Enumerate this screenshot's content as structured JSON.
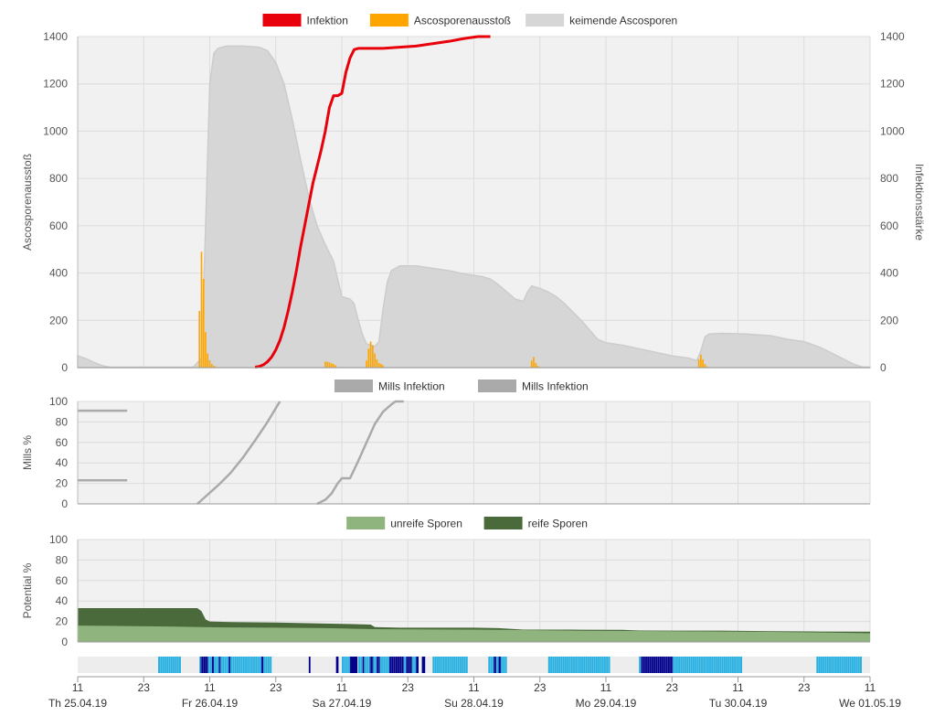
{
  "colors": {
    "infection": "#e8000b",
    "ascospore_release": "#ffa500",
    "germinating": "#d6d6d6",
    "germinating_stroke": "#cccccc",
    "mills": "#aaaaaa",
    "immature": "#8fb47e",
    "mature": "#4a6a3c",
    "plot_bg": "#f1f1f1",
    "grid": "#dcdcdc",
    "wet_light": "#29b0e0",
    "wet_dark": "#00008b",
    "strip_bg": "#ededed"
  },
  "chart_data": [
    {
      "id": "ascospores",
      "type": "bar+line+area",
      "xlabel": "",
      "ylabel": "Ascosporenausstoß",
      "y2label": "Infektionsstärke",
      "ylim": [
        0,
        1400
      ],
      "y2lim": [
        0,
        1400
      ],
      "yticks": [
        0,
        200,
        400,
        600,
        800,
        1000,
        1200,
        1400
      ],
      "legend": [
        "Infektion",
        "Ascosporenausstoß",
        "keimende Ascosporen"
      ],
      "legend_position": "top-center",
      "grid": true,
      "series": [
        {
          "name": "keimende Ascosporen",
          "kind": "area",
          "points": [
            [
              0,
              50
            ],
            [
              2,
              38
            ],
            [
              4,
              22
            ],
            [
              6,
              8
            ],
            [
              8,
              2
            ],
            [
              12,
              2
            ],
            [
              18,
              2
            ],
            [
              24,
              2
            ],
            [
              28,
              2
            ],
            [
              30,
              40
            ],
            [
              31,
              600
            ],
            [
              32,
              1200
            ],
            [
              33,
              1330
            ],
            [
              34,
              1350
            ],
            [
              36,
              1360
            ],
            [
              40,
              1360
            ],
            [
              44,
              1355
            ],
            [
              46,
              1340
            ],
            [
              48,
              1290
            ],
            [
              50,
              1200
            ],
            [
              52,
              1050
            ],
            [
              54,
              880
            ],
            [
              56,
              720
            ],
            [
              58,
              600
            ],
            [
              60,
              520
            ],
            [
              62,
              450
            ],
            [
              64,
              300
            ],
            [
              66,
              290
            ],
            [
              67,
              270
            ],
            [
              68,
              200
            ],
            [
              69,
              140
            ],
            [
              70,
              100
            ],
            [
              72,
              90
            ],
            [
              73,
              110
            ],
            [
              74,
              250
            ],
            [
              75,
              360
            ],
            [
              76,
              410
            ],
            [
              78,
              430
            ],
            [
              82,
              430
            ],
            [
              86,
              420
            ],
            [
              90,
              410
            ],
            [
              94,
              395
            ],
            [
              98,
              385
            ],
            [
              100,
              375
            ],
            [
              102,
              350
            ],
            [
              104,
              320
            ],
            [
              106,
              290
            ],
            [
              108,
              280
            ],
            [
              109,
              320
            ],
            [
              110,
              345
            ],
            [
              112,
              335
            ],
            [
              114,
              320
            ],
            [
              116,
              300
            ],
            [
              118,
              270
            ],
            [
              120,
              235
            ],
            [
              122,
              200
            ],
            [
              124,
              160
            ],
            [
              126,
              120
            ],
            [
              128,
              105
            ],
            [
              132,
              95
            ],
            [
              136,
              80
            ],
            [
              140,
              65
            ],
            [
              144,
              50
            ],
            [
              148,
              40
            ],
            [
              150,
              30
            ],
            [
              151,
              70
            ],
            [
              152,
              130
            ],
            [
              153,
              142
            ],
            [
              156,
              145
            ],
            [
              162,
              142
            ],
            [
              168,
              135
            ],
            [
              172,
              120
            ],
            [
              176,
              110
            ],
            [
              180,
              85
            ],
            [
              184,
              50
            ],
            [
              188,
              15
            ],
            [
              190,
              3
            ],
            [
              192,
              2
            ]
          ]
        },
        {
          "name": "Ascosporenausstoß",
          "kind": "bar",
          "points": [
            [
              29.5,
              240
            ],
            [
              30,
              490
            ],
            [
              30.5,
              375
            ],
            [
              31,
              150
            ],
            [
              31.5,
              60
            ],
            [
              32,
              30
            ],
            [
              32.5,
              15
            ],
            [
              33,
              8
            ],
            [
              33.5,
              4
            ],
            [
              34,
              2
            ],
            [
              60,
              25
            ],
            [
              60.5,
              25
            ],
            [
              61,
              22
            ],
            [
              61.5,
              18
            ],
            [
              62,
              15
            ],
            [
              62.5,
              10
            ],
            [
              70,
              30
            ],
            [
              70.5,
              80
            ],
            [
              71,
              110
            ],
            [
              71.5,
              95
            ],
            [
              72,
              60
            ],
            [
              72.5,
              35
            ],
            [
              73,
              20
            ],
            [
              73.5,
              15
            ],
            [
              74,
              10
            ],
            [
              110,
              30
            ],
            [
              110.5,
              45
            ],
            [
              111,
              20
            ],
            [
              111.5,
              8
            ],
            [
              150.5,
              35
            ],
            [
              151,
              55
            ],
            [
              151.5,
              35
            ],
            [
              152,
              15
            ],
            [
              152.5,
              5
            ]
          ]
        },
        {
          "name": "Infektion",
          "kind": "line",
          "points": [
            [
              43,
              2
            ],
            [
              44,
              5
            ],
            [
              45,
              12
            ],
            [
              46,
              25
            ],
            [
              47,
              45
            ],
            [
              48,
              75
            ],
            [
              49,
              115
            ],
            [
              50,
              170
            ],
            [
              51,
              240
            ],
            [
              52,
              320
            ],
            [
              53,
              410
            ],
            [
              54,
              510
            ],
            [
              55,
              600
            ],
            [
              56,
              690
            ],
            [
              57,
              780
            ],
            [
              58,
              850
            ],
            [
              59,
              920
            ],
            [
              60,
              1000
            ],
            [
              61,
              1100
            ],
            [
              62,
              1150
            ],
            [
              63,
              1150
            ],
            [
              64,
              1160
            ],
            [
              65,
              1250
            ],
            [
              66,
              1310
            ],
            [
              67,
              1345
            ],
            [
              68,
              1350
            ],
            [
              74,
              1350
            ],
            [
              78,
              1355
            ],
            [
              82,
              1360
            ],
            [
              86,
              1370
            ],
            [
              90,
              1380
            ],
            [
              93,
              1390
            ],
            [
              95,
              1395
            ],
            [
              97,
              1400
            ],
            [
              100,
              1400
            ]
          ]
        }
      ]
    },
    {
      "id": "mills",
      "type": "line",
      "xlabel": "",
      "ylabel": "Mills %",
      "ylim": [
        0,
        100
      ],
      "yticks": [
        0,
        20,
        40,
        60,
        80,
        100
      ],
      "legend": [
        "Mills Infektion",
        "Mills Infektion"
      ],
      "legend_position": "top-center",
      "grid": true,
      "series": [
        {
          "name": "Mills Infektion",
          "points": [
            [
              0,
              91
            ],
            [
              12,
              91
            ]
          ]
        },
        {
          "name": "Mills Infektion",
          "points": [
            [
              0,
              23
            ],
            [
              12,
              23
            ]
          ]
        },
        {
          "name": "Mills Infektion",
          "points": [
            [
              29,
              0
            ],
            [
              34,
              18
            ],
            [
              37,
              30
            ],
            [
              40,
              45
            ],
            [
              43,
              62
            ],
            [
              46,
              80
            ],
            [
              49,
              100
            ]
          ]
        },
        {
          "name": "Mills Infektion",
          "points": [
            [
              58,
              0
            ],
            [
              60,
              4
            ],
            [
              61.5,
              10
            ],
            [
              63,
              20
            ],
            [
              64,
              25
            ],
            [
              66,
              25
            ],
            [
              68,
              42
            ],
            [
              70,
              60
            ],
            [
              72,
              78
            ],
            [
              74,
              90
            ],
            [
              76,
              97
            ],
            [
              77,
              100
            ],
            [
              79,
              100
            ]
          ]
        }
      ]
    },
    {
      "id": "potential",
      "type": "area",
      "xlabel": "",
      "ylabel": "Potential %",
      "ylim": [
        0,
        100
      ],
      "yticks": [
        0,
        20,
        40,
        60,
        80,
        100
      ],
      "legend": [
        "unreife Sporen",
        "reife Sporen"
      ],
      "legend_position": "top-center",
      "grid": true,
      "series": [
        {
          "name": "unreife Sporen",
          "points": [
            [
              0,
              16
            ],
            [
              12,
              15.5
            ],
            [
              24,
              15
            ],
            [
              30,
              14.5
            ],
            [
              36,
              14.2
            ],
            [
              48,
              14
            ],
            [
              60,
              13.5
            ],
            [
              66,
              13
            ],
            [
              72,
              12.5
            ],
            [
              96,
              12
            ],
            [
              120,
              11
            ],
            [
              144,
              10.5
            ],
            [
              168,
              9.8
            ],
            [
              180,
              9.3
            ],
            [
              192,
              8.5
            ]
          ]
        },
        {
          "name": "reife Sporen",
          "points": [
            [
              0,
              33
            ],
            [
              12,
              33
            ],
            [
              24,
              33
            ],
            [
              29,
              33
            ],
            [
              30,
              30
            ],
            [
              31,
              22
            ],
            [
              32,
              20
            ],
            [
              36,
              19.5
            ],
            [
              48,
              19
            ],
            [
              60,
              18
            ],
            [
              66,
              17.5
            ],
            [
              71,
              17
            ],
            [
              72,
              14.5
            ],
            [
              78,
              14
            ],
            [
              96,
              14
            ],
            [
              102,
              13.5
            ],
            [
              108,
              12
            ],
            [
              120,
              12
            ],
            [
              132,
              11.8
            ],
            [
              136,
              11.2
            ],
            [
              144,
              11
            ],
            [
              156,
              11
            ],
            [
              168,
              10.5
            ],
            [
              180,
              10.2
            ],
            [
              192,
              10
            ]
          ]
        }
      ]
    }
  ],
  "x_axis": {
    "start_hour": 0,
    "end_hour": 192,
    "ticks": [
      {
        "hour": 0,
        "time": "11",
        "date": "Th 25.04.19"
      },
      {
        "hour": 16,
        "time": "23",
        "date": ""
      },
      {
        "hour": 32,
        "time": "11",
        "date": "Fr 26.04.19"
      },
      {
        "hour": 48,
        "time": "23",
        "date": ""
      },
      {
        "hour": 64,
        "time": "11",
        "date": "Sa 27.04.19"
      },
      {
        "hour": 80,
        "time": "23",
        "date": ""
      },
      {
        "hour": 96,
        "time": "11",
        "date": "Su 28.04.19"
      },
      {
        "hour": 112,
        "time": "23",
        "date": ""
      },
      {
        "hour": 128,
        "time": "11",
        "date": "Mo 29.04.19"
      },
      {
        "hour": 144,
        "time": "23",
        "date": ""
      },
      {
        "hour": 160,
        "time": "11",
        "date": "Tu 30.04.19"
      },
      {
        "hour": 176,
        "time": "23",
        "date": ""
      },
      {
        "hour": 192,
        "time": "11",
        "date": "We 01.05.19"
      }
    ]
  },
  "wetness_strip": {
    "light_segments": [
      [
        19.5,
        25
      ],
      [
        29.5,
        47
      ],
      [
        64,
        66
      ],
      [
        68,
        82
      ],
      [
        86,
        94.5
      ],
      [
        99.5,
        102
      ],
      [
        102.5,
        104
      ],
      [
        114,
        129
      ],
      [
        136,
        161
      ],
      [
        179,
        190
      ]
    ],
    "dark_segments": [
      [
        29.8,
        31.6
      ],
      [
        32.5,
        33
      ],
      [
        34.2,
        34.6
      ],
      [
        36.6,
        37
      ],
      [
        44.5,
        45
      ],
      [
        56,
        56.4
      ],
      [
        62.6,
        63.2
      ],
      [
        66,
        67.8
      ],
      [
        69,
        69.4
      ],
      [
        70.8,
        71.6
      ],
      [
        72.4,
        73.2
      ],
      [
        75.5,
        79
      ],
      [
        79.6,
        81
      ],
      [
        82,
        82.6
      ],
      [
        83.4,
        84.2
      ],
      [
        100.8,
        101.4
      ],
      [
        102,
        102.5
      ],
      [
        136.5,
        144.2
      ]
    ]
  }
}
